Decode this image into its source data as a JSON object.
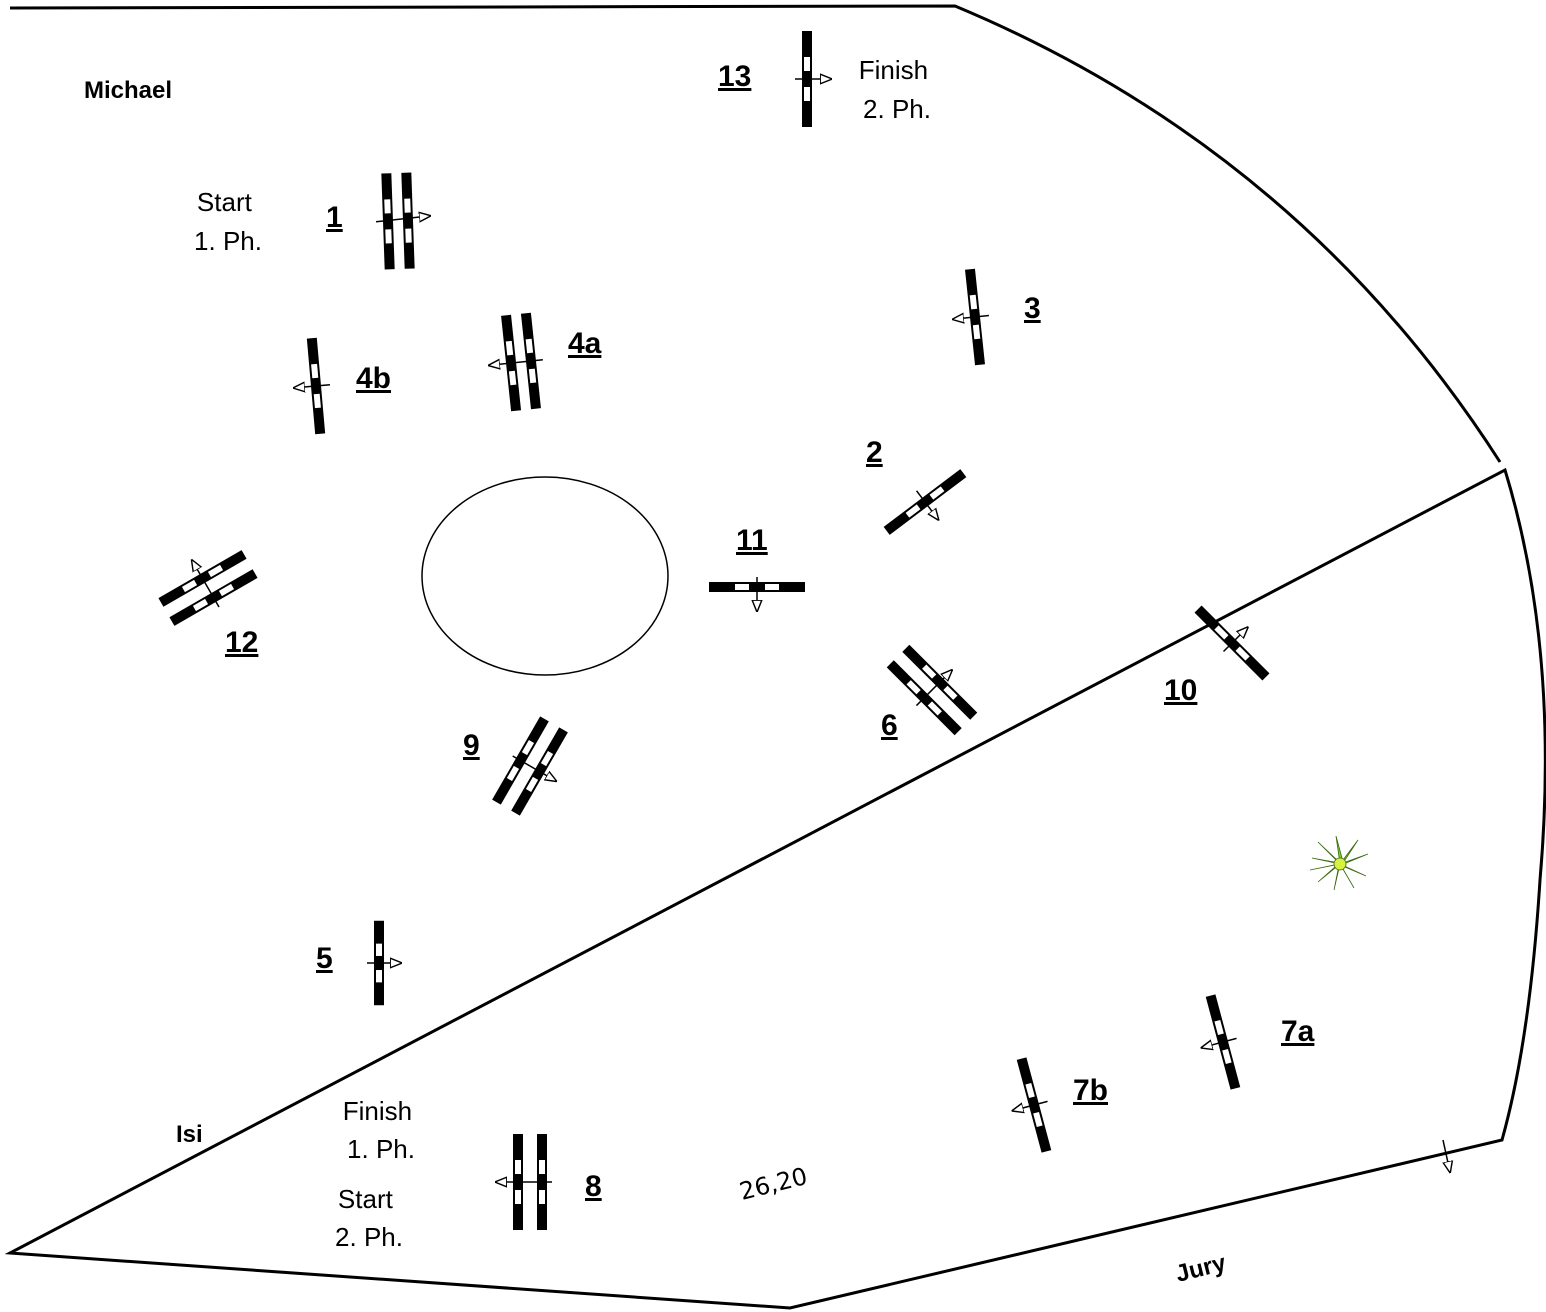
{
  "diagram": {
    "arena_labels": {
      "top_left": "Michael",
      "bottom_left": "Isi",
      "jury": "Jury",
      "measurement": "26,20"
    },
    "phase_labels": {
      "start_phase1": [
        "Start",
        "1. Ph."
      ],
      "finish_phase1": [
        "Finish",
        "1. Ph."
      ],
      "start_phase2": [
        "Start",
        "2. Ph."
      ],
      "finish_phase2": [
        "Finish",
        "2. Ph."
      ]
    },
    "obstacles": [
      {
        "label": "1",
        "kind": "oxer"
      },
      {
        "label": "2",
        "kind": "vertical"
      },
      {
        "label": "3",
        "kind": "vertical"
      },
      {
        "label": "4a",
        "kind": "oxer"
      },
      {
        "label": "4b",
        "kind": "vertical"
      },
      {
        "label": "5",
        "kind": "vertical"
      },
      {
        "label": "6",
        "kind": "oxer"
      },
      {
        "label": "7a",
        "kind": "vertical"
      },
      {
        "label": "7b",
        "kind": "vertical"
      },
      {
        "label": "8",
        "kind": "oxer"
      },
      {
        "label": "9",
        "kind": "oxer"
      },
      {
        "label": "10",
        "kind": "vertical"
      },
      {
        "label": "11",
        "kind": "vertical"
      },
      {
        "label": "12",
        "kind": "oxer"
      },
      {
        "label": "13",
        "kind": "vertical"
      }
    ],
    "colors": {
      "line": "#000000",
      "background": "#ffffff",
      "plant": "#7ec832"
    },
    "icons": [
      "plant-icon",
      "direction-arrow-icon"
    ]
  }
}
